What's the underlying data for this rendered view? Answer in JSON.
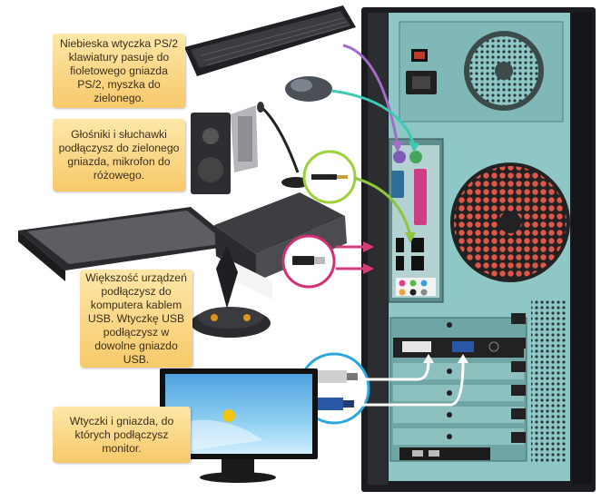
{
  "callouts": {
    "ps2": "Niebieska wtyczka PS/2 klawiatury pasuje do fioletowego gniazda PS/2, myszka do zielonego.",
    "audio": "Głośniki i słuchawki podłączysz do zielonego gniazda, mikrofon do różowego.",
    "usb": "Większość urządzeń podłączysz do komputera kablem USB. Wtyczkę USB podłączysz w dowolne gniazdo USB.",
    "monitor": "Wtyczki i gniazda, do których podłączysz monitor."
  },
  "colors": {
    "callout_bg": "#f8cf74",
    "arrow_purple": "#a46bc8",
    "arrow_teal": "#3ec9b3",
    "arrow_green": "#8cc63e",
    "arrow_pink": "#d63b7c",
    "arrow_white": "#ffffff",
    "ring_green": "#9bd23c",
    "ring_pink": "#d42e74",
    "ring_blue": "#2aa7d9",
    "case_front": "#1b1c1f",
    "case_back": "#8ec7c6"
  },
  "icons": [
    "keyboard",
    "mouse",
    "speakers",
    "microphone",
    "headphone-jack",
    "printer",
    "scanner",
    "joystick",
    "usb-plug",
    "dvi-plug",
    "vga-plug",
    "monitor",
    "computer-case"
  ]
}
